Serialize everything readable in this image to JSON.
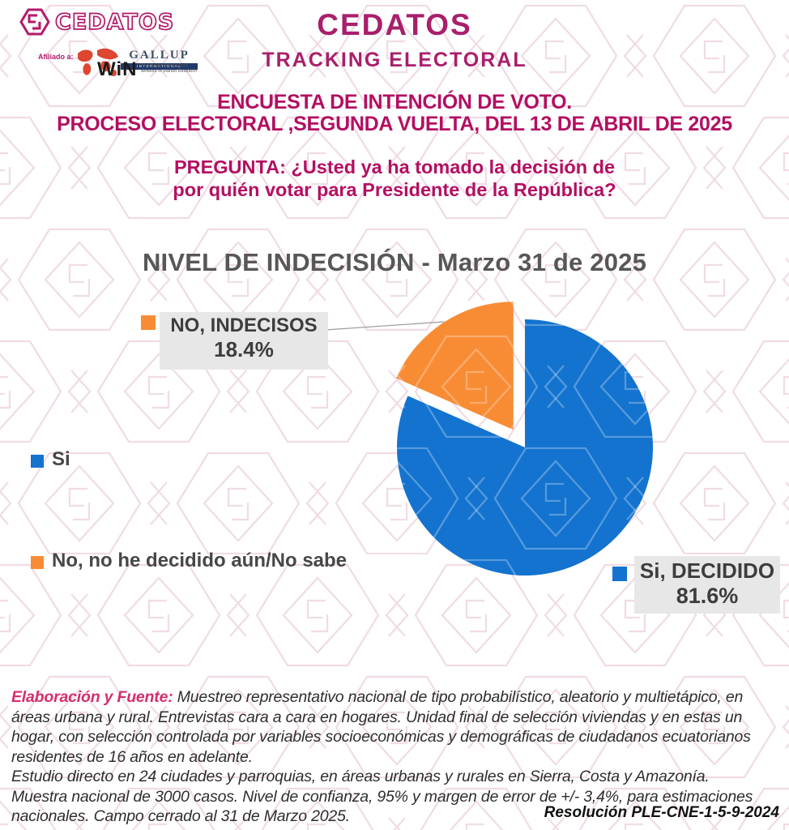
{
  "header": {
    "logo": {
      "brand": "CEDATOS",
      "affiliation_label": "Afiliado a:",
      "gallup": "GALLUP",
      "gallup_sub": "INTERNATIONAL",
      "win": "WiN",
      "win_sub": "Worldwide Independent Network of Market Research"
    },
    "title": "CEDATOS",
    "subtitle": "TRACKING  ELECTORAL",
    "heading_line1": "ENCUESTA  DE INTENCIÓN DE VOTO.",
    "heading_line2": "PROCESO ELECTORAL ,SEGUNDA VUELTA, DEL 13 DE ABRIL DE 2025",
    "question_line1": "PREGUNTA: ¿Usted ya ha tomado la decisión de",
    "question_line2": "por quién votar para Presidente de la República?"
  },
  "chart_data": {
    "type": "pie",
    "title": "NIVEL DE INDECISIÓN - Marzo 31 de 2025",
    "unit": "%",
    "direction": "clockwise",
    "start_angle_deg": 0,
    "legend_position": "left",
    "slices": [
      {
        "label": "Si",
        "callout": "Si, DECIDIDO",
        "value": 81.6,
        "display": "81.6%",
        "color": "#1373cf",
        "exploded": false
      },
      {
        "label": "No, no he decidido aún/No sabe",
        "callout": "NO, INDECISOS",
        "value": 18.4,
        "display": "18.4%",
        "color": "#f88c35",
        "exploded": true
      }
    ]
  },
  "footer": {
    "source_label": "Elaboración y Fuente:",
    "paragraph1": "Muestreo representativo nacional de tipo probabilístico, aleatorio y multietápico, en áreas urbana y rural. Entrevistas cara a cara en hogares. Unidad final de selección viviendas y en estas un hogar, con selección controlada por variables socioeconómicas y demográficas de ciudadanos ecuatorianos residentes de 16 años en adelante.",
    "paragraph2": "Estudio directo en 24 ciudades y parroquias, en áreas urbanas y rurales en Sierra, Costa y Amazonía.",
    "paragraph3": "Muestra nacional de 3000 casos. Nivel de confianza, 95% y margen de error de +/- 3,4%, para estimaciones nacionales. Campo cerrado al 31 de Marzo 2025.",
    "resolution": "Resolución PLE-CNE-1-5-9-2024"
  },
  "colors": {
    "magenta": "#a91f6b",
    "crimson": "#b30f62",
    "pink": "#d62d6e",
    "blue": "#1373cf",
    "orange": "#f88c35",
    "gray_text": "#575757",
    "label_bg": "#e7e7e7"
  }
}
